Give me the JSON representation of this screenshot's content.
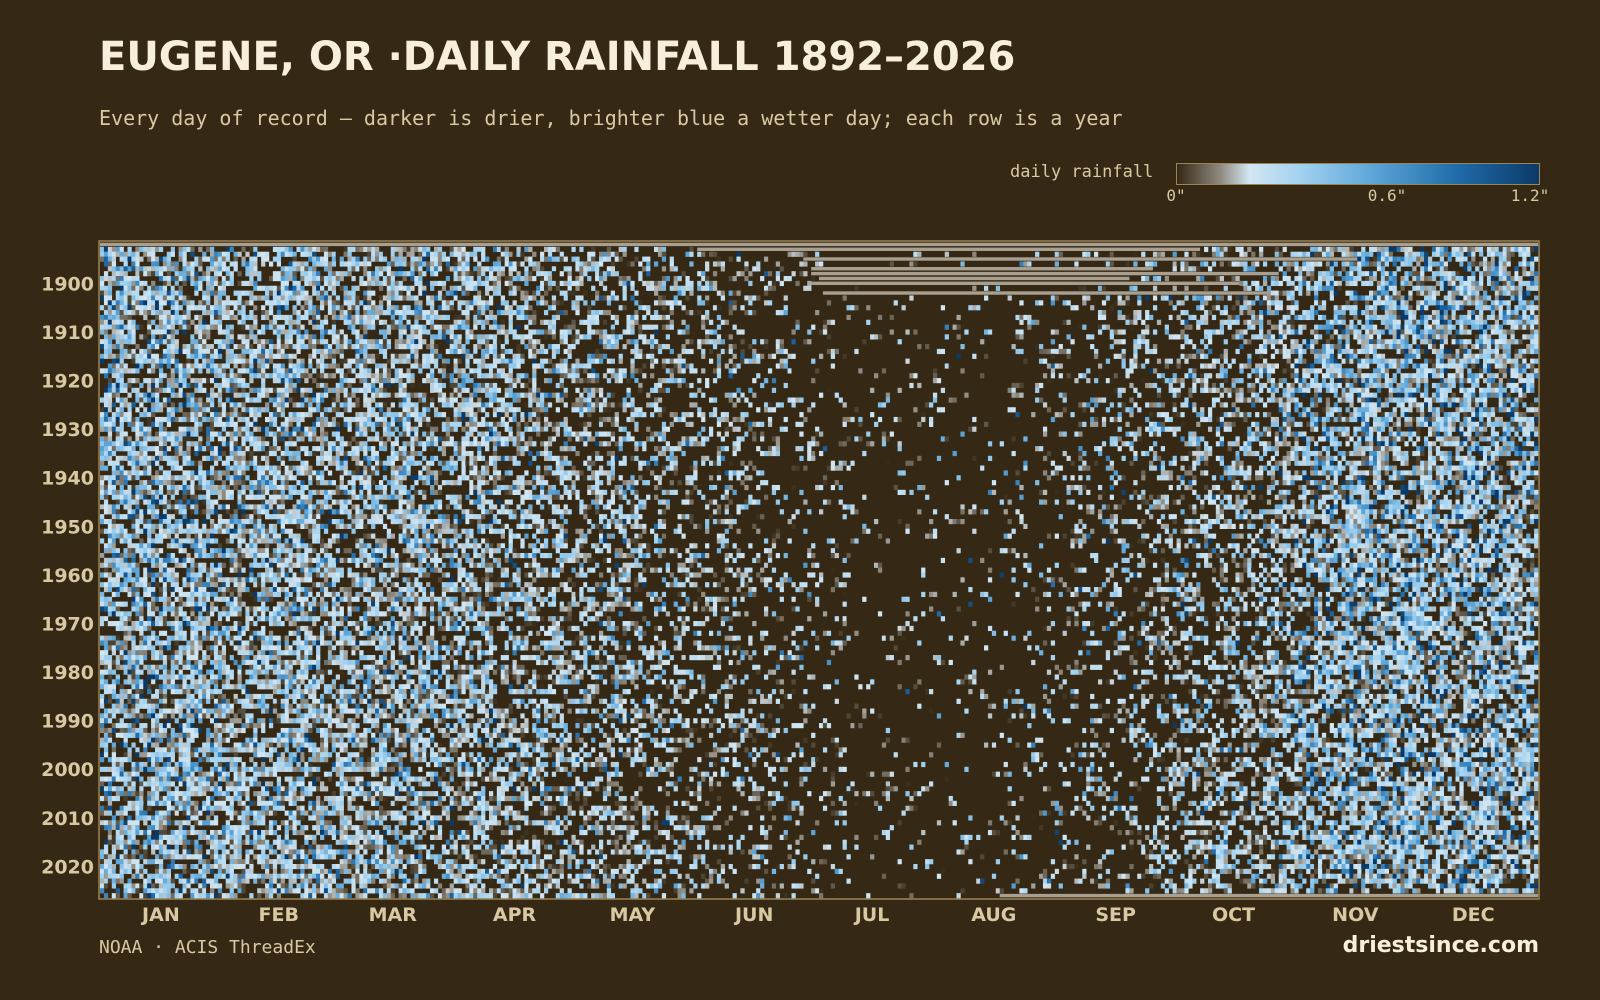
{
  "header": {
    "title": "EUGENE, OR ·DAILY RAINFALL 1892–2026",
    "subtitle": "Every day of record — darker is drier, brighter blue a wetter day; each row is a year"
  },
  "legend": {
    "label": "daily rainfall",
    "ticks": [
      "0\"",
      "0.6\"",
      "1.2\""
    ],
    "colors": [
      "#352915",
      "#8f8a80",
      "#d3e6f2",
      "#9fd0ef",
      "#5aa3d6",
      "#1f6aa8",
      "#0b3a68"
    ]
  },
  "footer": {
    "source": "NOAA · ACIS ThreadEx",
    "site": "driestsince.com"
  },
  "colors": {
    "background": "#352915",
    "frame": "#9c8455",
    "missing": "#a89f90",
    "text": "#d9c9a3"
  },
  "chart_data": {
    "type": "heatmap",
    "title": "EUGENE, OR ·DAILY RAINFALL 1892–2026",
    "x": {
      "label": "",
      "unit": "day of year",
      "range": [
        1,
        366
      ],
      "tick_labels": [
        "JAN",
        "FEB",
        "MAR",
        "APR",
        "MAY",
        "JUN",
        "JUL",
        "AUG",
        "SEP",
        "OCT",
        "NOV",
        "DEC"
      ],
      "tick_days": [
        16,
        46,
        75,
        106,
        136,
        167,
        197,
        228,
        259,
        289,
        320,
        350
      ]
    },
    "y": {
      "label": "",
      "unit": "year",
      "range": [
        1892,
        2026
      ],
      "tick_labels": [
        "1900",
        "1910",
        "1920",
        "1930",
        "1940",
        "1950",
        "1960",
        "1970",
        "1980",
        "1990",
        "2000",
        "2010",
        "2020"
      ]
    },
    "value_unit": "inches",
    "color_range": [
      0,
      1.2
    ],
    "monthly_mean_daily_rain": [
      0.24,
      0.2,
      0.18,
      0.13,
      0.09,
      0.05,
      0.01,
      0.02,
      0.05,
      0.11,
      0.25,
      0.26
    ],
    "monthly_wet_day_fraction": [
      0.62,
      0.6,
      0.58,
      0.48,
      0.36,
      0.22,
      0.06,
      0.08,
      0.2,
      0.4,
      0.62,
      0.64
    ],
    "missing_periods": [
      {
        "year": 1892,
        "from_day": 1,
        "to_day": 366
      },
      {
        "year": 1893,
        "from_day": 153,
        "to_day": 280
      },
      {
        "year": 1895,
        "from_day": 180,
        "to_day": 320
      },
      {
        "year": 1897,
        "from_day": 182,
        "to_day": 268
      },
      {
        "year": 1898,
        "from_day": 182,
        "to_day": 300
      },
      {
        "year": 1899,
        "from_day": 184,
        "to_day": 262
      },
      {
        "year": 1900,
        "from_day": 182,
        "to_day": 290
      },
      {
        "year": 1902,
        "from_day": 185,
        "to_day": 297
      },
      {
        "year": 2026,
        "from_day": 230,
        "to_day": 366
      }
    ]
  }
}
